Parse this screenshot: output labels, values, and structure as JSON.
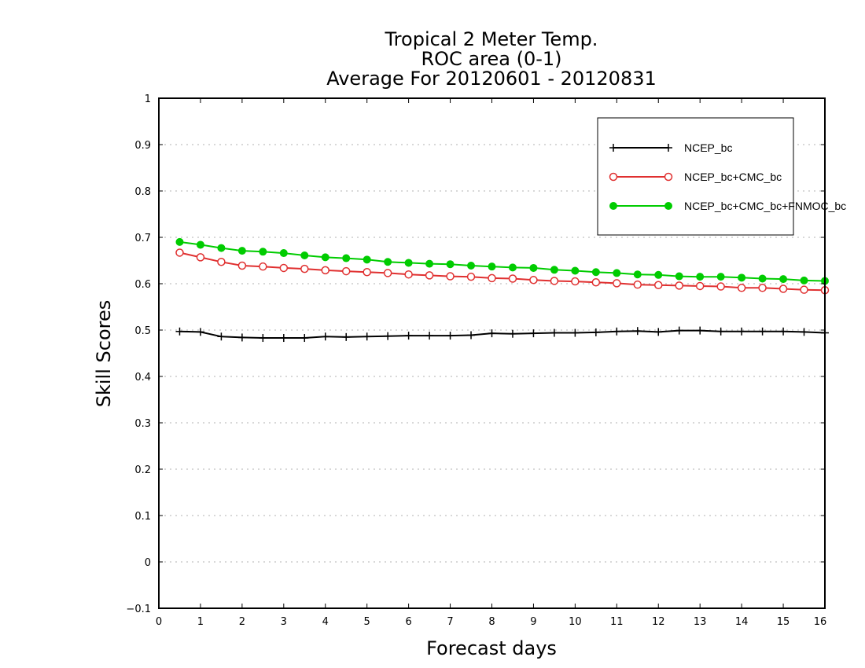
{
  "chart_data": {
    "type": "line",
    "title": [
      "Tropical 2 Meter Temp.",
      "ROC area (0-1)",
      "Average For 20120601 - 20120831"
    ],
    "xlabel": "Forecast days",
    "ylabel": "Skill Scores",
    "xlim": [
      0,
      16
    ],
    "ylim": [
      -0.1,
      1
    ],
    "xticks": [
      0,
      1,
      2,
      3,
      4,
      5,
      6,
      7,
      8,
      9,
      10,
      11,
      12,
      13,
      14,
      15,
      16
    ],
    "yticks": [
      -0.1,
      0,
      0.1,
      0.2,
      0.3,
      0.4,
      0.5,
      0.6,
      0.7,
      0.8,
      0.9,
      1
    ],
    "ytick_labels": [
      "−0.1",
      "0",
      "0.1",
      "0.2",
      "0.3",
      "0.4",
      "0.5",
      "0.6",
      "0.7",
      "0.8",
      "0.9",
      "1"
    ],
    "grid": "horizontal dotted",
    "legend_position": "top-right",
    "x": [
      0.5,
      1,
      1.5,
      2,
      2.5,
      3,
      3.5,
      4,
      4.5,
      5,
      5.5,
      6,
      6.5,
      7,
      7.5,
      8,
      8.5,
      9,
      9.5,
      10,
      10.5,
      11,
      11.5,
      12,
      12.5,
      13,
      13.5,
      14,
      14.5,
      15,
      15.5,
      16
    ],
    "series": [
      {
        "name": "NCEP_bc",
        "color": "#000000",
        "marker": "plus",
        "values": [
          0.497,
          0.496,
          0.486,
          0.484,
          0.483,
          0.483,
          0.483,
          0.486,
          0.485,
          0.486,
          0.487,
          0.488,
          0.488,
          0.488,
          0.489,
          0.493,
          0.492,
          0.493,
          0.494,
          0.494,
          0.495,
          0.497,
          0.498,
          0.496,
          0.499,
          0.499,
          0.497,
          0.497,
          0.497,
          0.497,
          0.496,
          0.494
        ]
      },
      {
        "name": "NCEP_bc+CMC_bc",
        "color": "#e03030",
        "marker": "open-circle",
        "values": [
          0.667,
          0.657,
          0.647,
          0.639,
          0.637,
          0.634,
          0.632,
          0.629,
          0.627,
          0.625,
          0.623,
          0.62,
          0.618,
          0.616,
          0.615,
          0.612,
          0.611,
          0.608,
          0.606,
          0.605,
          0.603,
          0.601,
          0.598,
          0.597,
          0.596,
          0.595,
          0.594,
          0.591,
          0.591,
          0.589,
          0.587,
          0.586
        ]
      },
      {
        "name": "NCEP_bc+CMC_bc+FNMOC_bc",
        "color": "#00cc00",
        "marker": "filled-circle",
        "values": [
          0.69,
          0.684,
          0.677,
          0.671,
          0.669,
          0.666,
          0.661,
          0.657,
          0.655,
          0.652,
          0.647,
          0.645,
          0.643,
          0.642,
          0.639,
          0.637,
          0.635,
          0.634,
          0.63,
          0.628,
          0.625,
          0.623,
          0.62,
          0.619,
          0.616,
          0.615,
          0.615,
          0.613,
          0.611,
          0.61,
          0.607,
          0.606
        ]
      }
    ]
  }
}
